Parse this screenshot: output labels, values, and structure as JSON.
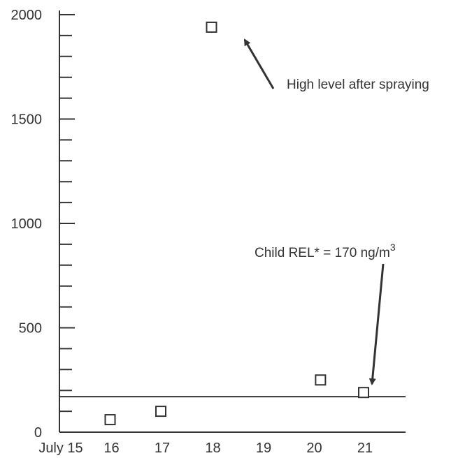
{
  "chart_data": {
    "type": "scatter",
    "title": "",
    "xlabel": "",
    "ylabel": "",
    "x_ticks": [
      {
        "x": 15,
        "label": "July 15"
      },
      {
        "x": 16,
        "label": "16"
      },
      {
        "x": 17,
        "label": "17"
      },
      {
        "x": 18,
        "label": "18"
      },
      {
        "x": 19,
        "label": "19"
      },
      {
        "x": 20,
        "label": "20"
      },
      {
        "x": 21,
        "label": "21"
      }
    ],
    "y_ticks": [
      0,
      500,
      1000,
      1500,
      2000
    ],
    "y_minor_step": 100,
    "xlim": [
      15,
      22.5
    ],
    "ylim": [
      0,
      2000
    ],
    "grid": false,
    "points": [
      {
        "x": 16,
        "y": 60
      },
      {
        "x": 17,
        "y": 100
      },
      {
        "x": 18,
        "y": 1940
      },
      {
        "x": 20.15,
        "y": 250
      },
      {
        "x": 21,
        "y": 190
      }
    ],
    "reference_line": {
      "y": 170,
      "label_prefix": "Child REL* = 170 ng/m",
      "label_superscript": "3"
    },
    "annotations": [
      {
        "text": "High level after spraying",
        "points_to": {
          "x": 18,
          "y": 1940
        }
      }
    ],
    "colors": {
      "marker": "#333333",
      "line": "#333333",
      "text": "#333333"
    }
  }
}
